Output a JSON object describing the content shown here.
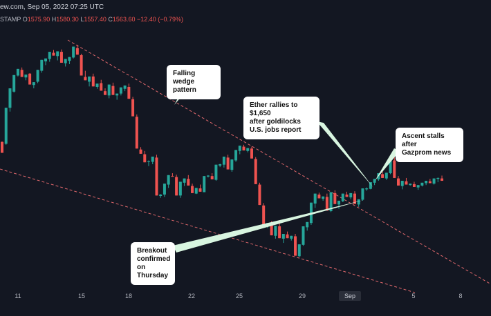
{
  "header": {
    "source_text": "ew.com, Sep 05, 2022 07:25 UTC",
    "symbol": "STAMP",
    "o_label": "O",
    "o_value": "1575.90",
    "h_label": "H",
    "h_value": "1580.30",
    "l_label": "L",
    "l_value": "1557.40",
    "c_label": "C",
    "c_value": "1563.60",
    "change": "−12.40 (−0.79%)"
  },
  "colors": {
    "up": "#26a69a",
    "down": "#ef5350",
    "trend": "#e0686c",
    "arrow": "#d8f5e0",
    "bg": "#131722"
  },
  "chart_data": {
    "type": "candlestick",
    "x_ticks": [
      "11",
      "15",
      "18",
      "22",
      "25",
      "29",
      "Sep",
      "5",
      "8"
    ],
    "x_range": [
      "Aug 10",
      "Sep 9"
    ],
    "grid": false,
    "annotations": [
      {
        "text": "Falling wedge\npattern"
      },
      {
        "text": "Ether rallies to $1,650\nafter goldilocks\nU.S. jobs report"
      },
      {
        "text": "Ascent stalls after\nGazprom news"
      },
      {
        "text": "Breakout\nconfirmed on\nThursday"
      }
    ],
    "trendlines": [
      {
        "name": "wedge-upper",
        "style": "dashed"
      },
      {
        "name": "wedge-lower",
        "style": "dashed"
      }
    ],
    "candles": [
      [
        1888,
        1886,
        1865,
        1889
      ],
      [
        1884,
        1886,
        1960,
        1882
      ],
      [
        1960,
        1956,
        2001,
        1952
      ],
      [
        1994,
        1998,
        2029,
        1992
      ],
      [
        2028,
        2029,
        2042,
        2026
      ],
      [
        2040,
        2042,
        2025,
        2045
      ],
      [
        2024,
        2025,
        2030,
        2018
      ],
      [
        2032,
        2030,
        2009,
        2033
      ],
      [
        2008,
        2005,
        2014,
        2001
      ],
      [
        2015,
        2016,
        2040,
        2012
      ],
      [
        2038,
        2041,
        2061,
        2034
      ],
      [
        2058,
        2062,
        2064,
        2050
      ],
      [
        2063,
        2061,
        2078,
        2057
      ],
      [
        2076,
        2080,
        2070,
        2082
      ],
      [
        2069,
        2071,
        2079,
        2060
      ],
      [
        2078,
        2081,
        2055,
        2083
      ],
      [
        2054,
        2056,
        2063,
        2047
      ],
      [
        2059,
        2064,
        2067,
        2052
      ],
      [
        2066,
        2068,
        2089,
        2064
      ],
      [
        2086,
        2090,
        2072,
        2093
      ],
      [
        2071,
        2074,
        2028,
        2074
      ],
      [
        2025,
        2030,
        2018,
        2038
      ],
      [
        2015,
        2018,
        2026,
        2005
      ],
      [
        2026,
        2030,
        2005,
        2032
      ],
      [
        2004,
        2008,
        2011,
        2000
      ],
      [
        2012,
        2014,
        1996,
        2019
      ],
      [
        1995,
        2000,
        1987,
        2001
      ],
      [
        1986,
        1990,
        2009,
        1980
      ],
      [
        2006,
        2010,
        1987,
        2013
      ],
      [
        1986,
        1989,
        1990,
        1977
      ],
      [
        1990,
        1992,
        2003,
        1986
      ],
      [
        2000,
        2006,
        2007,
        1995
      ],
      [
        2004,
        2008,
        1979,
        2011
      ],
      [
        1978,
        1981,
        1942,
        1983
      ],
      [
        1941,
        1945,
        1874,
        1946
      ],
      [
        1872,
        1874,
        1863,
        1877
      ],
      [
        1862,
        1866,
        1845,
        1869
      ],
      [
        1846,
        1849,
        1847,
        1837
      ],
      [
        1846,
        1850,
        1857,
        1841
      ],
      [
        1855,
        1858,
        1775,
        1861
      ],
      [
        1774,
        1778,
        1777,
        1770
      ],
      [
        1777,
        1780,
        1800,
        1772
      ],
      [
        1798,
        1802,
        1818,
        1791
      ],
      [
        1816,
        1820,
        1815,
        1822
      ],
      [
        1814,
        1817,
        1775,
        1819
      ],
      [
        1775,
        1777,
        1804,
        1770
      ],
      [
        1802,
        1806,
        1811,
        1795
      ],
      [
        1810,
        1813,
        1796,
        1818
      ],
      [
        1795,
        1798,
        1780,
        1800
      ],
      [
        1779,
        1782,
        1791,
        1778
      ],
      [
        1790,
        1793,
        1783,
        1798
      ],
      [
        1782,
        1785,
        1816,
        1782
      ],
      [
        1815,
        1818,
        1817,
        1813
      ],
      [
        1816,
        1820,
        1809,
        1822
      ],
      [
        1808,
        1811,
        1840,
        1806
      ],
      [
        1838,
        1842,
        1841,
        1835
      ],
      [
        1840,
        1843,
        1857,
        1834
      ],
      [
        1855,
        1858,
        1830,
        1861
      ],
      [
        1829,
        1832,
        1851,
        1825
      ],
      [
        1849,
        1853,
        1871,
        1846
      ],
      [
        1869,
        1873,
        1880,
        1862
      ],
      [
        1878,
        1881,
        1870,
        1882
      ],
      [
        1869,
        1873,
        1875,
        1866
      ],
      [
        1874,
        1877,
        1853,
        1878
      ],
      [
        1852,
        1854,
        1799,
        1856
      ],
      [
        1798,
        1800,
        1755,
        1802
      ],
      [
        1754,
        1758,
        1713,
        1759
      ],
      [
        1712,
        1716,
        1717,
        1706
      ],
      [
        1716,
        1720,
        1691,
        1721
      ],
      [
        1690,
        1694,
        1711,
        1684
      ],
      [
        1710,
        1714,
        1685,
        1717
      ],
      [
        1684,
        1688,
        1694,
        1675
      ],
      [
        1693,
        1697,
        1685,
        1699
      ],
      [
        1684,
        1687,
        1690,
        1680
      ],
      [
        1689,
        1692,
        1648,
        1694
      ],
      [
        1647,
        1651,
        1672,
        1645
      ],
      [
        1671,
        1675,
        1710,
        1669
      ],
      [
        1708,
        1712,
        1719,
        1701
      ],
      [
        1717,
        1721,
        1760,
        1713
      ],
      [
        1758,
        1762,
        1779,
        1749
      ],
      [
        1777,
        1780,
        1769,
        1781
      ],
      [
        1768,
        1772,
        1773,
        1764
      ],
      [
        1772,
        1776,
        1743,
        1779
      ],
      [
        1742,
        1746,
        1782,
        1740
      ],
      [
        1780,
        1784,
        1757,
        1786
      ],
      [
        1756,
        1760,
        1764,
        1747
      ],
      [
        1763,
        1767,
        1779,
        1761
      ],
      [
        1777,
        1781,
        1772,
        1783
      ],
      [
        1771,
        1775,
        1780,
        1767
      ],
      [
        1779,
        1782,
        1757,
        1784
      ],
      [
        1756,
        1760,
        1767,
        1751
      ],
      [
        1766,
        1769,
        1790,
        1764
      ],
      [
        1788,
        1792,
        1790,
        1785
      ],
      [
        1789,
        1793,
        1803,
        1788
      ],
      [
        1802,
        1806,
        1810,
        1797
      ],
      [
        1809,
        1813,
        1822,
        1806
      ],
      [
        1820,
        1824,
        1812,
        1826
      ],
      [
        1811,
        1814,
        1823,
        1808
      ],
      [
        1822,
        1826,
        1851,
        1820
      ],
      [
        1849,
        1853,
        1812,
        1856
      ],
      [
        1811,
        1814,
        1796,
        1816
      ],
      [
        1795,
        1798,
        1806,
        1788
      ],
      [
        1805,
        1809,
        1798,
        1812
      ],
      [
        1797,
        1800,
        1800,
        1796
      ],
      [
        1799,
        1803,
        1793,
        1804
      ],
      [
        1792,
        1796,
        1797,
        1787
      ],
      [
        1796,
        1800,
        1802,
        1794
      ],
      [
        1801,
        1804,
        1806,
        1797
      ],
      [
        1805,
        1808,
        1801,
        1810
      ],
      [
        1800,
        1804,
        1811,
        1798
      ],
      [
        1810,
        1813,
        1812,
        1803
      ],
      [
        1811,
        1815,
        1806,
        1817
      ]
    ]
  }
}
